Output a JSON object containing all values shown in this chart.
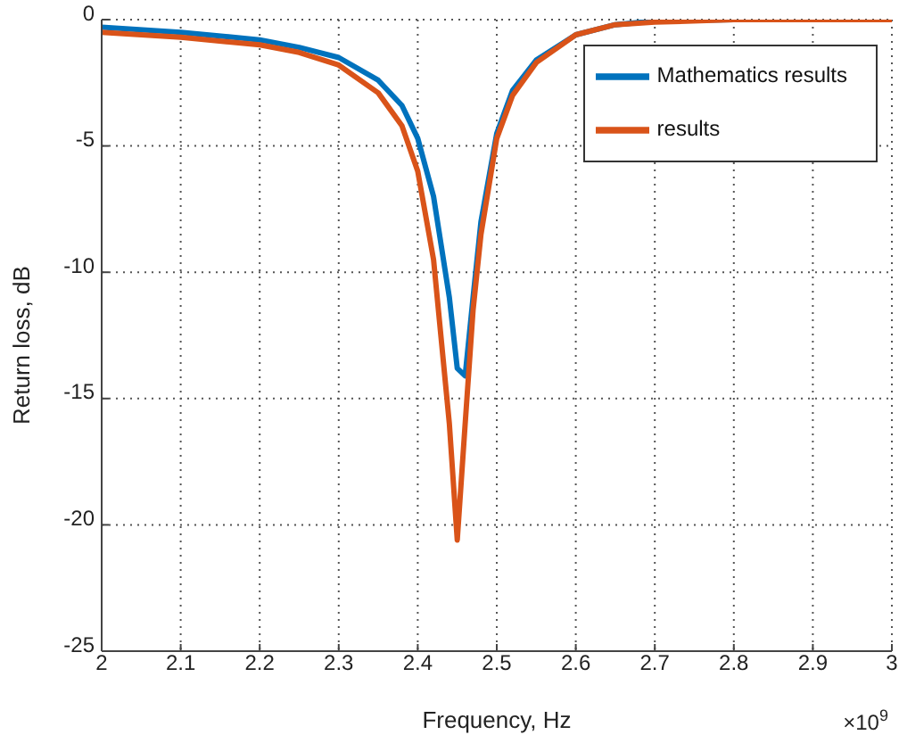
{
  "chart_data": {
    "type": "line",
    "xlabel": "Frequency, Hz",
    "ylabel": "Return loss, dB",
    "annotations": [
      "×10$^{9}$"
    ],
    "x": [
      2.0,
      2.1,
      2.2,
      2.25,
      2.3,
      2.35,
      2.38,
      2.4,
      2.42,
      2.44,
      2.45,
      2.46,
      2.47,
      2.48,
      2.5,
      2.52,
      2.55,
      2.6,
      2.65,
      2.7,
      2.8,
      3.0
    ],
    "series": [
      {
        "name": "Mathematics results",
        "color": "#0072bd",
        "values": [
          -0.3,
          -0.5,
          -0.8,
          -1.1,
          -1.5,
          -2.4,
          -3.4,
          -4.7,
          -7,
          -11,
          -13.8,
          -14.1,
          -11,
          -8,
          -4.5,
          -2.8,
          -1.6,
          -0.6,
          -0.2,
          -0.05,
          0,
          0
        ]
      },
      {
        "name": "results",
        "color": "#d95319",
        "values": [
          -0.5,
          -0.7,
          -1.0,
          -1.3,
          -1.8,
          -2.9,
          -4.2,
          -6,
          -9.5,
          -16,
          -20.6,
          -16,
          -11.5,
          -8.5,
          -4.7,
          -3,
          -1.7,
          -0.6,
          -0.2,
          -0.1,
          0,
          0
        ]
      }
    ],
    "xlim": [
      2,
      3
    ],
    "xticks": [
      2,
      2.1,
      2.2,
      2.3,
      2.4,
      2.5,
      2.6,
      2.7,
      2.8,
      2.9,
      3
    ],
    "ylim": [
      -25,
      0
    ],
    "yticks": [
      -25,
      -20,
      -15,
      -10,
      -5,
      0
    ],
    "grid": true,
    "legend": "top right",
    "marker": "none",
    "line_style": "solid"
  }
}
